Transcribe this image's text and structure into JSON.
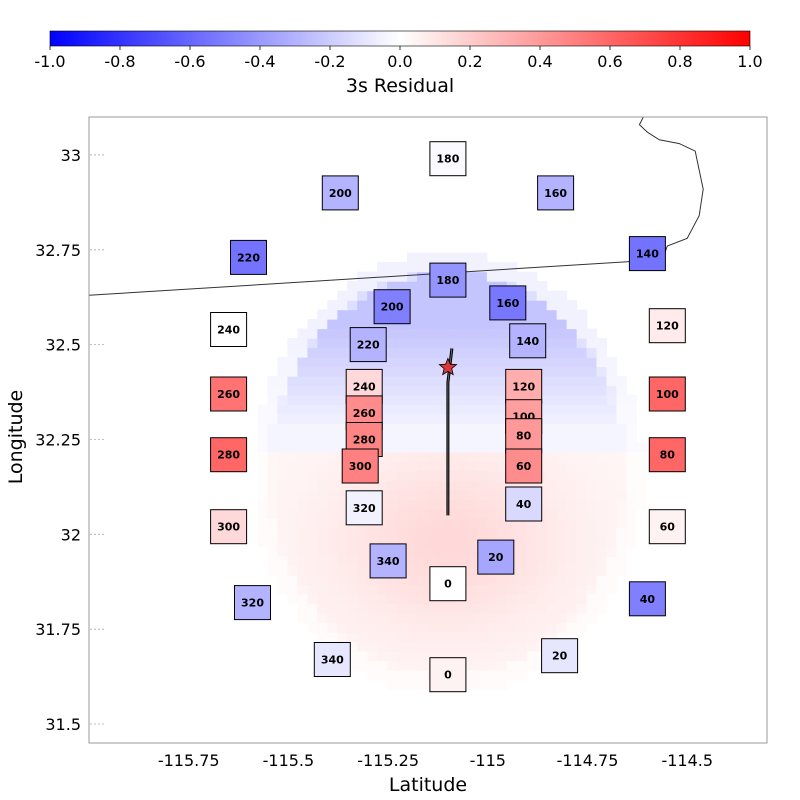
{
  "chart_data": {
    "type": "heatmap",
    "colorbar": {
      "label": "3s Residual",
      "ticks": [
        "-1.0",
        "-0.8",
        "-0.6",
        "-0.4",
        "-0.2",
        "0.0",
        "0.2",
        "0.4",
        "0.6",
        "0.8",
        "1.0"
      ],
      "range": [
        -1.0,
        1.0
      ],
      "colormap": "bwr",
      "placement": "top"
    },
    "xlabel": "Latitude",
    "ylabel": "Longitude",
    "xlim": [
      -116.0,
      -114.3
    ],
    "ylim": [
      31.45,
      33.1
    ],
    "x_ticks": [
      "-115.75",
      "-115.5",
      "-115.25",
      "-115",
      "-114.75",
      "-114.5"
    ],
    "x_tick_values": [
      -115.75,
      -115.5,
      -115.25,
      -115.0,
      -114.75,
      -114.5
    ],
    "y_ticks": [
      "31.5",
      "31.75",
      "32",
      "32.25",
      "32.5",
      "32.75",
      "33"
    ],
    "y_tick_values": [
      31.5,
      31.75,
      32.0,
      32.25,
      32.5,
      32.75,
      33.0
    ],
    "grid": "dashed y-tick guides",
    "epicenter": {
      "x": -115.1,
      "y": 32.44
    },
    "fault_trace": [
      [
        -115.09,
        32.49
      ],
      [
        -115.1,
        32.4
      ],
      [
        -115.1,
        32.2
      ],
      [
        -115.1,
        32.05
      ]
    ],
    "borders": [
      [
        [
          -116.0,
          32.63
        ],
        [
          -114.63,
          32.72
        ]
      ],
      [
        [
          -114.63,
          32.72
        ],
        [
          -114.56,
          32.73
        ],
        [
          -114.55,
          32.76
        ],
        [
          -114.5,
          32.78
        ],
        [
          -114.47,
          32.84
        ],
        [
          -114.46,
          32.91
        ],
        [
          -114.47,
          32.96
        ],
        [
          -114.48,
          33.01
        ],
        [
          -114.52,
          33.03
        ],
        [
          -114.57,
          33.04
        ],
        [
          -114.6,
          33.06
        ],
        [
          -114.62,
          33.08
        ],
        [
          -114.61,
          33.1
        ]
      ]
    ],
    "field": {
      "center": [
        -115.1,
        32.16
      ],
      "cell_size": [
        0.025,
        0.025
      ],
      "rings": [
        {
          "ry": 0.58,
          "rx": 0.49
        },
        {
          "ry": 0.53,
          "rx": 0.44
        }
      ]
    },
    "stations": [
      {
        "label": "180",
        "x": -115.1,
        "y": 32.99,
        "value": -0.02
      },
      {
        "label": "200",
        "x": -115.37,
        "y": 32.9,
        "value": -0.3
      },
      {
        "label": "160",
        "x": -114.83,
        "y": 32.9,
        "value": -0.3
      },
      {
        "label": "220",
        "x": -115.6,
        "y": 32.73,
        "value": -0.55
      },
      {
        "label": "140",
        "x": -114.6,
        "y": 32.74,
        "value": -0.55
      },
      {
        "label": "180",
        "x": -115.1,
        "y": 32.67,
        "value": -0.42
      },
      {
        "label": "200",
        "x": -115.24,
        "y": 32.6,
        "value": -0.5
      },
      {
        "label": "160",
        "x": -114.95,
        "y": 32.61,
        "value": -0.53
      },
      {
        "label": "240",
        "x": -115.65,
        "y": 32.54,
        "value": 0.0
      },
      {
        "label": "120",
        "x": -114.55,
        "y": 32.55,
        "value": 0.08
      },
      {
        "label": "220",
        "x": -115.3,
        "y": 32.5,
        "value": -0.3
      },
      {
        "label": "140",
        "x": -114.9,
        "y": 32.51,
        "value": -0.3
      },
      {
        "label": "240",
        "x": -115.31,
        "y": 32.39,
        "value": 0.15
      },
      {
        "label": "120",
        "x": -114.91,
        "y": 32.39,
        "value": 0.32
      },
      {
        "label": "260",
        "x": -115.65,
        "y": 32.37,
        "value": 0.55
      },
      {
        "label": "100",
        "x": -114.55,
        "y": 32.37,
        "value": 0.6
      },
      {
        "label": "260",
        "x": -115.31,
        "y": 32.32,
        "value": 0.45
      },
      {
        "label": "100",
        "x": -114.91,
        "y": 32.31,
        "value": 0.38
      },
      {
        "label": "80",
        "x": -114.91,
        "y": 32.26,
        "value": 0.4
      },
      {
        "label": "280",
        "x": -115.31,
        "y": 32.25,
        "value": 0.48
      },
      {
        "label": "280",
        "x": -115.65,
        "y": 32.21,
        "value": 0.6
      },
      {
        "label": "80",
        "x": -114.55,
        "y": 32.21,
        "value": 0.6
      },
      {
        "label": "300",
        "x": -115.32,
        "y": 32.18,
        "value": 0.5
      },
      {
        "label": "60",
        "x": -114.91,
        "y": 32.18,
        "value": 0.45
      },
      {
        "label": "320",
        "x": -115.31,
        "y": 32.07,
        "value": -0.05
      },
      {
        "label": "40",
        "x": -114.91,
        "y": 32.08,
        "value": -0.15
      },
      {
        "label": "300",
        "x": -115.65,
        "y": 32.02,
        "value": 0.15
      },
      {
        "label": "60",
        "x": -114.55,
        "y": 32.02,
        "value": 0.05
      },
      {
        "label": "340",
        "x": -115.25,
        "y": 31.93,
        "value": -0.3
      },
      {
        "label": "20",
        "x": -114.98,
        "y": 31.94,
        "value": -0.35
      },
      {
        "label": "0",
        "x": -115.1,
        "y": 31.87,
        "value": 0.0
      },
      {
        "label": "320",
        "x": -115.59,
        "y": 31.82,
        "value": -0.3
      },
      {
        "label": "40",
        "x": -114.6,
        "y": 31.83,
        "value": -0.5
      },
      {
        "label": "340",
        "x": -115.39,
        "y": 31.67,
        "value": -0.1
      },
      {
        "label": "20",
        "x": -114.82,
        "y": 31.68,
        "value": -0.1
      },
      {
        "label": "0",
        "x": -115.1,
        "y": 31.63,
        "value": 0.05
      }
    ]
  }
}
